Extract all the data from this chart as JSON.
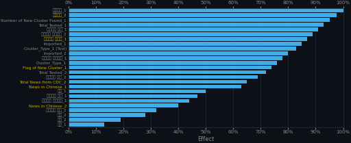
{
  "title": "",
  "xlabel": "Effect",
  "background_color": "#0d1117",
  "plot_bg_color": "#0f1923",
  "bar_color": "#3daee9",
  "text_color_normal": "#888888",
  "text_color_highlight": "#ccaa00",
  "xtick_labels": [
    "0%",
    "10%",
    "20%",
    "30%",
    "40%",
    "50%",
    "60%",
    "70%",
    "80%",
    "90%",
    "100%"
  ],
  "xtick_values": [
    0.0,
    0.1,
    0.2,
    0.3,
    0.4,
    0.5,
    0.6,
    0.7,
    0.8,
    0.9,
    1.0
  ],
  "features": [
    {
      "name": "居家随模_1",
      "value": 1.0,
      "highlight": false
    },
    {
      "name": "居家随模_2",
      "value": 0.975,
      "highlight": true
    },
    {
      "name": "Number of New Cluster Found_1",
      "value": 0.95,
      "highlight": false
    },
    {
      "name": "Total Tested_1",
      "value": 0.93,
      "highlight": false
    },
    {
      "name": "新冠肺炎 门诊_1",
      "value": 0.91,
      "highlight": false
    },
    {
      "name": "新冠肺炎 住院模式_2",
      "value": 0.89,
      "highlight": false
    },
    {
      "name": "新冠肺炎 為际模_1",
      "value": 0.87,
      "highlight": true
    },
    {
      "name": "Imported_1",
      "value": 0.85,
      "highlight": false
    },
    {
      "name": "Cluster_Type_1 (Test)",
      "value": 0.83,
      "highlight": false
    },
    {
      "name": "Imported_2",
      "value": 0.8,
      "highlight": false
    },
    {
      "name": "武漢肺炎 住院模式_1",
      "value": 0.78,
      "highlight": false
    },
    {
      "name": "Cluster_Type_1",
      "value": 0.76,
      "highlight": false
    },
    {
      "name": "Flag of New Cluster_1",
      "value": 0.74,
      "highlight": true
    },
    {
      "name": "Total Tested_2",
      "value": 0.72,
      "highlight": false
    },
    {
      "name": "武漢肺炎 门诊_2",
      "value": 0.69,
      "highlight": false
    },
    {
      "name": "Total News from CDC_2",
      "value": 0.65,
      "highlight": true
    },
    {
      "name": "News in Chinese_1",
      "value": 0.63,
      "highlight": true
    },
    {
      "name": "口罩_1",
      "value": 0.5,
      "highlight": false
    },
    {
      "name": "新冠肺炎 升于_1",
      "value": 0.47,
      "highlight": false
    },
    {
      "name": "新冠肺炎 住院模式_1",
      "value": 0.44,
      "highlight": false
    },
    {
      "name": "News in Chinese_2",
      "value": 0.4,
      "highlight": true
    },
    {
      "name": "武漢肺炎 门诊_2",
      "value": 0.32,
      "highlight": false
    },
    {
      "name": "口罩_2",
      "value": 0.28,
      "highlight": false
    },
    {
      "name": "酒精_2",
      "value": 0.19,
      "highlight": false
    },
    {
      "name": "酒精_1",
      "value": 0.13,
      "highlight": false
    }
  ]
}
